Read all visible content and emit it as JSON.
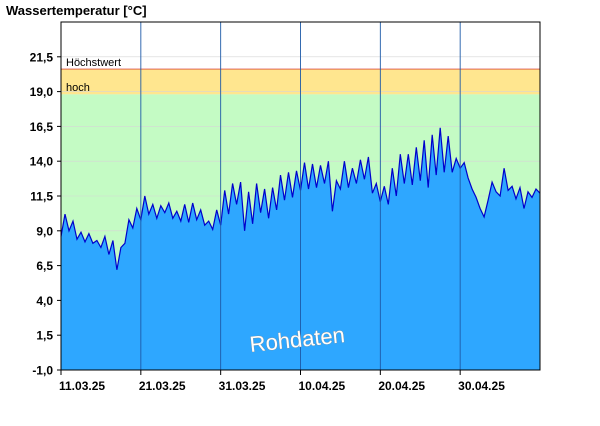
{
  "chart_data": {
    "type": "area",
    "title": "Wassertemperatur [°C]",
    "watermark": "Rohdaten",
    "ylim": [
      -1.0,
      24.0
    ],
    "yticks": [
      "21,5",
      "19,0",
      "16,5",
      "14,0",
      "11,5",
      "9,0",
      "6,5",
      "4,0",
      "1,5",
      "-1,0"
    ],
    "ytick_values": [
      21.5,
      19.0,
      16.5,
      14.0,
      11.5,
      9.0,
      6.5,
      4.0,
      1.5,
      -1.0
    ],
    "x_start": "2025-03-11",
    "x_days": 60,
    "xtick_labels": [
      "11.03.25",
      "21.03.25",
      "31.03.25",
      "10.04.25",
      "20.04.25",
      "30.04.25"
    ],
    "xtick_days": [
      0,
      10,
      20,
      30,
      40,
      50
    ],
    "bands": [
      {
        "label": "Höchstwert",
        "from": 20.6,
        "to": 24.0,
        "color": "#ffffff",
        "line_color": "#cc0000"
      },
      {
        "label": "hoch",
        "from": 18.8,
        "to": 20.6,
        "color": "#ffe68f"
      },
      {
        "label": "",
        "from": -1.0,
        "to": 18.8,
        "color": "#c4fbc4"
      }
    ],
    "series": [
      {
        "fill_color": "#2ea7ff",
        "line_color": "#0000cc",
        "x": [
          0,
          0.5,
          1,
          1.5,
          2,
          2.5,
          3,
          3.5,
          4,
          4.5,
          5,
          5.5,
          6,
          6.5,
          7,
          7.5,
          8,
          8.5,
          9,
          9.5,
          10,
          10.5,
          11,
          11.5,
          12,
          12.5,
          13,
          13.5,
          14,
          14.5,
          15,
          15.5,
          16,
          16.5,
          17,
          17.5,
          18,
          18.5,
          19,
          19.5,
          20,
          20.5,
          21,
          21.5,
          22,
          22.5,
          23,
          23.5,
          24,
          24.5,
          25,
          25.5,
          26,
          26.5,
          27,
          27.5,
          28,
          28.5,
          29,
          29.5,
          30,
          30.5,
          31,
          31.5,
          32,
          32.5,
          33,
          33.5,
          34,
          34.5,
          35,
          35.5,
          36,
          36.5,
          37,
          37.5,
          38,
          38.5,
          39,
          39.5,
          40,
          40.5,
          41,
          41.5,
          42,
          42.5,
          43,
          43.5,
          44,
          44.5,
          45,
          45.5,
          46,
          46.5,
          47,
          47.5,
          48,
          48.5,
          49,
          49.5,
          50,
          50.5,
          51,
          51.5,
          52,
          52.5,
          53,
          53.5,
          54,
          54.5,
          55,
          55.5,
          56,
          56.5,
          57,
          57.5,
          58,
          58.5,
          59,
          59.5,
          60
        ],
        "y": [
          8.6,
          10.2,
          9.0,
          9.7,
          8.4,
          8.9,
          8.2,
          8.8,
          8.1,
          8.3,
          7.8,
          8.6,
          7.3,
          8.3,
          6.2,
          7.8,
          8.1,
          9.8,
          9.2,
          10.6,
          9.8,
          11.5,
          10.2,
          10.9,
          9.9,
          10.8,
          10.3,
          11.0,
          9.9,
          10.4,
          9.7,
          10.9,
          9.6,
          11.0,
          9.8,
          10.5,
          9.4,
          9.7,
          9.1,
          10.5,
          9.4,
          11.9,
          10.2,
          12.4,
          10.9,
          12.5,
          9.0,
          11.8,
          9.5,
          12.4,
          10.3,
          12.0,
          9.9,
          12.1,
          10.5,
          13.0,
          11.2,
          13.2,
          11.4,
          13.3,
          11.9,
          13.9,
          12.0,
          13.8,
          12.1,
          13.7,
          12.4,
          14.0,
          10.4,
          12.6,
          12.0,
          14.0,
          12.1,
          13.5,
          12.4,
          14.1,
          12.7,
          14.3,
          11.7,
          12.4,
          11.1,
          12.2,
          10.9,
          13.5,
          11.5,
          14.5,
          12.4,
          14.5,
          12.3,
          15.0,
          12.6,
          15.5,
          12.1,
          15.9,
          13.0,
          16.4,
          13.2,
          15.8,
          13.2,
          14.2,
          13.5,
          13.9,
          12.8,
          12.0,
          11.4,
          10.6,
          10.0,
          11.2,
          12.5,
          11.8,
          11.5,
          13.5,
          11.9,
          12.2,
          11.3,
          12.1,
          10.6,
          11.8,
          11.4,
          12.0,
          11.7
        ]
      }
    ]
  }
}
